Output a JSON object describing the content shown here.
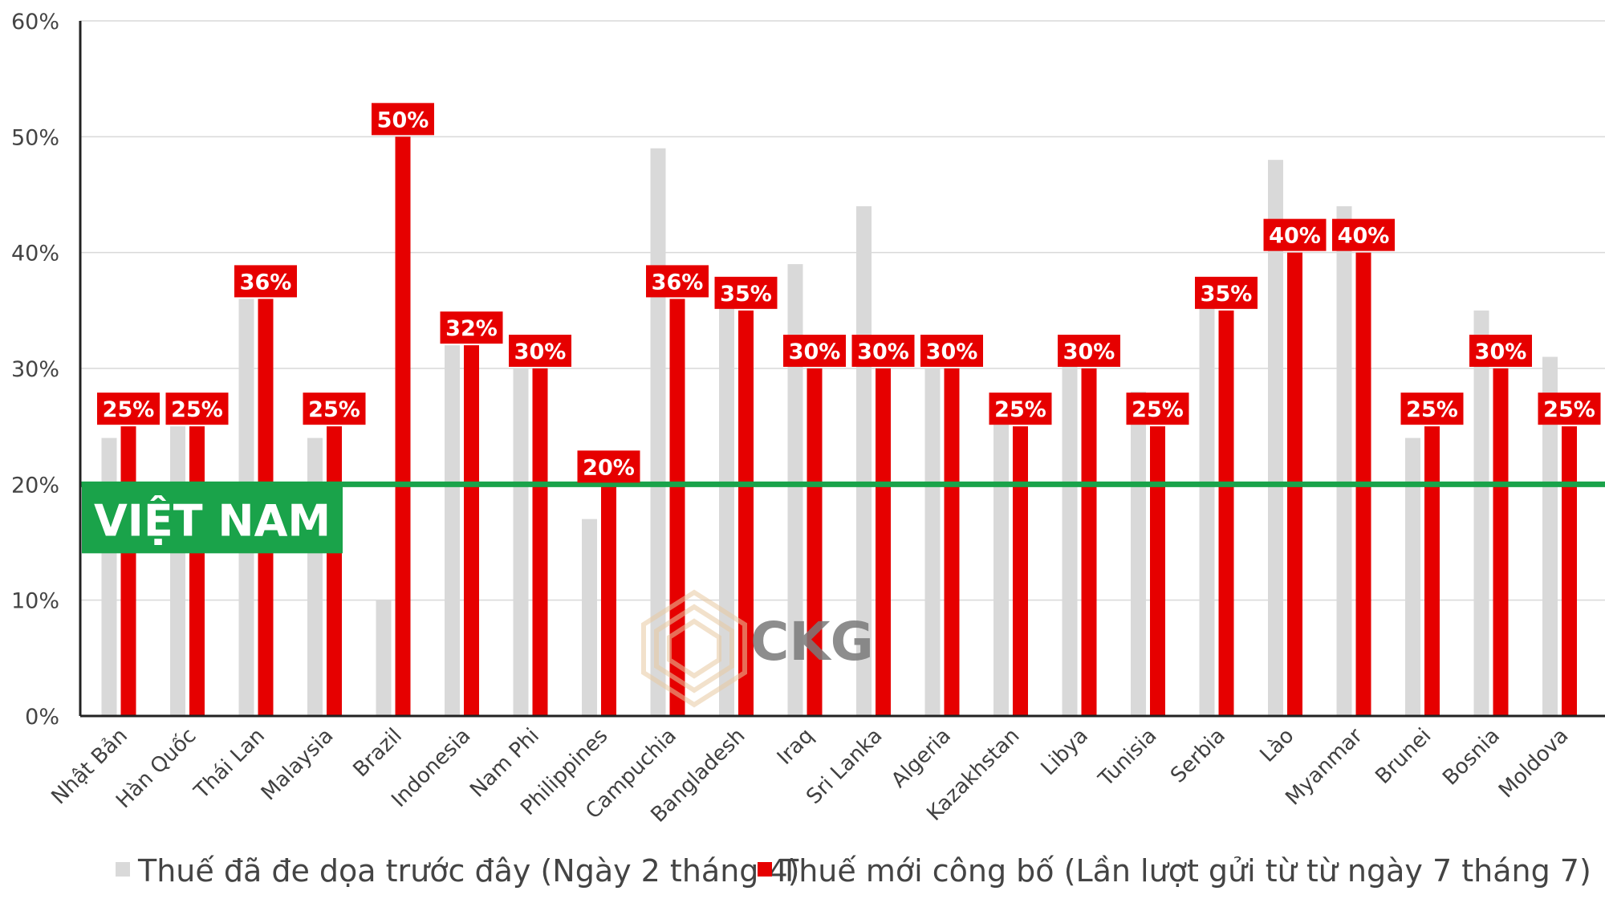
{
  "chart_data": {
    "type": "bar",
    "categories": [
      "Nhật Bản",
      "Hàn Quốc",
      "Thái Lan",
      "Malaysia",
      "Brazil",
      "Indonesia",
      "Nam Phi",
      "Philippines",
      "Campuchia",
      "Bangladesh",
      "Iraq",
      "Sri Lanka",
      "Algeria",
      "Kazakhstan",
      "Libya",
      "Tunisia",
      "Serbia",
      "Lào",
      "Myanmar",
      "Brunei",
      "Bosnia",
      "Moldova"
    ],
    "series": [
      {
        "name": "Thuế đã đe dọa trước đây (Ngày 2 tháng 4)",
        "color": "#d9d9d9",
        "values": [
          24,
          25,
          36,
          24,
          10,
          32,
          30,
          17,
          49,
          37,
          39,
          44,
          30,
          27,
          31,
          28,
          37,
          48,
          44,
          24,
          35,
          31
        ]
      },
      {
        "name": "Thuế mới công bố (Lần lượt gửi từ từ ngày 7 tháng 7)",
        "color": "#e60000",
        "values": [
          25,
          25,
          36,
          25,
          50,
          32,
          30,
          20,
          36,
          35,
          30,
          30,
          30,
          25,
          30,
          25,
          35,
          40,
          40,
          25,
          30,
          25
        ],
        "data_labels": [
          "25%",
          "25%",
          "36%",
          "25%",
          "50%",
          "32%",
          "30%",
          "20%",
          "36%",
          "35%",
          "30%",
          "30%",
          "30%",
          "25%",
          "30%",
          "25%",
          "35%",
          "40%",
          "40%",
          "25%",
          "30%",
          "25%"
        ]
      }
    ],
    "y_ticks": [
      "0%",
      "10%",
      "20%",
      "30%",
      "40%",
      "50%",
      "60%"
    ],
    "ylim": [
      0,
      60
    ],
    "grid": true,
    "legend_position": "bottom",
    "reference_line": {
      "value": 20,
      "label": "VIỆT NAM",
      "color": "#1aa34a"
    }
  },
  "watermark": {
    "text": "CKG",
    "icon": "ckg-logo-icon"
  }
}
